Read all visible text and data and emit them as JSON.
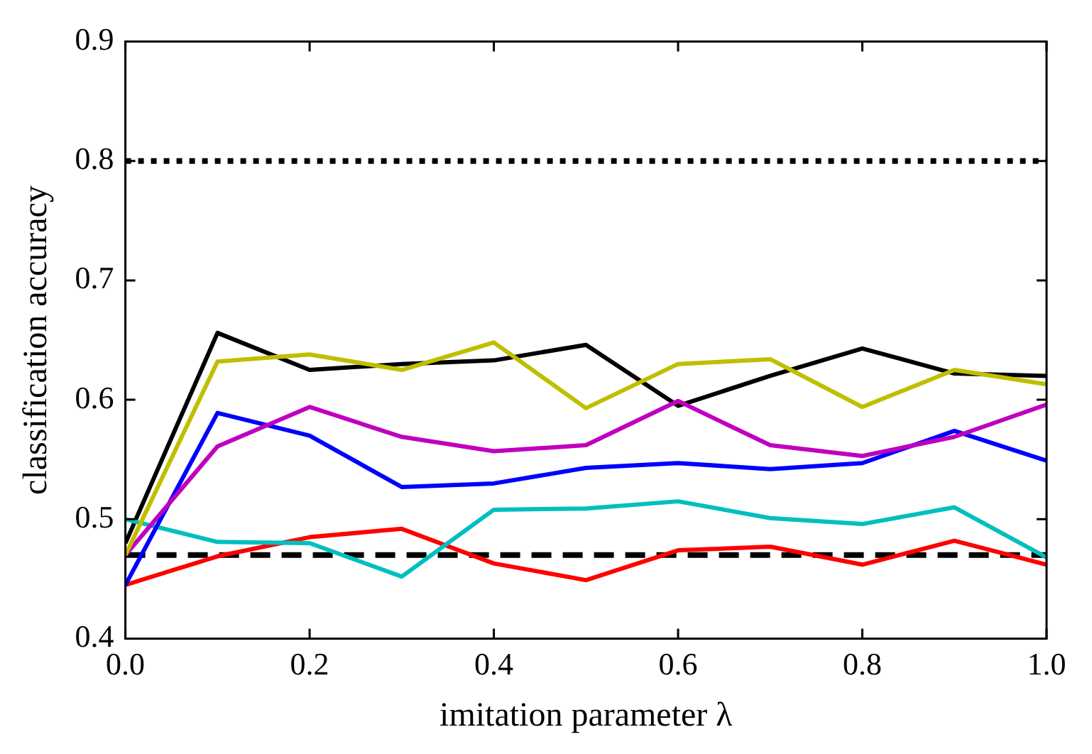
{
  "chart_data": {
    "type": "line",
    "xlabel": "imitation parameter λ",
    "ylabel": "classification accuracy",
    "x": [
      0,
      0.1,
      0.2,
      0.3,
      0.4,
      0.5,
      0.6,
      0.7,
      0.8,
      0.9,
      1.0
    ],
    "xlim": [
      0,
      1
    ],
    "xticks": [
      {
        "value": 0,
        "label": "0.0"
      },
      0.2,
      0.4,
      0.6,
      0.8,
      {
        "value": 1,
        "label": "1.0"
      }
    ],
    "ylim": [
      0.4,
      0.9
    ],
    "yticks": [
      0.4,
      0.5,
      0.6,
      0.7,
      0.8,
      0.9
    ],
    "grid": false,
    "legend": false,
    "marker": "none",
    "line_style": "solid",
    "series": [
      {
        "color": "#bfbf00",
        "values": [
          0.47,
          0.632,
          0.638,
          0.625,
          0.648,
          0.593,
          0.63,
          0.634,
          0.594,
          0.625,
          0.613
        ]
      },
      {
        "color": "#bf00bf",
        "values": [
          0.47,
          0.561,
          0.594,
          0.569,
          0.557,
          0.562,
          0.599,
          0.562,
          0.553,
          0.569,
          0.596
        ]
      },
      {
        "color": "#0000ff",
        "values": [
          0.445,
          0.589,
          0.57,
          0.527,
          0.53,
          0.543,
          0.547,
          0.542,
          0.547,
          0.574,
          0.549
        ]
      },
      {
        "color": "#00bfbf",
        "values": [
          0.5,
          0.481,
          0.48,
          0.452,
          0.508,
          0.509,
          0.515,
          0.501,
          0.496,
          0.51,
          0.468
        ]
      },
      {
        "color": "#ff0000",
        "values": [
          0.445,
          0.469,
          0.485,
          0.492,
          0.463,
          0.449,
          0.474,
          0.477,
          0.462,
          0.482,
          0.462
        ]
      },
      {
        "color": "#000000",
        "values": [
          0.48,
          0.656,
          0.625,
          0.63,
          0.633,
          0.646,
          0.595,
          0.62,
          0.643,
          0.622,
          0.62
        ]
      }
    ],
    "ref_lines": [
      {
        "axis": "y",
        "value": 0.8,
        "color": "#000000",
        "line_style": "dotted"
      },
      {
        "axis": "y",
        "value": 0.47,
        "color": "#000000",
        "line_style": "dashed"
      }
    ]
  }
}
